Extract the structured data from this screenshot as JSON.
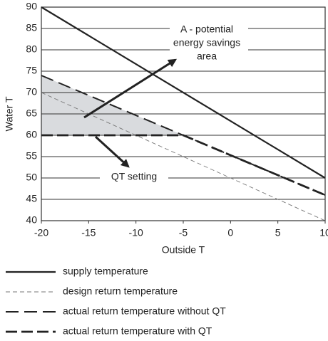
{
  "chart_data": {
    "type": "line",
    "xlabel": "Outside T",
    "ylabel": "Water T",
    "xlim": [
      -20,
      10
    ],
    "ylim": [
      40,
      90
    ],
    "xticks": [
      -20,
      -15,
      -10,
      -5,
      0,
      5,
      10
    ],
    "yticks": [
      40,
      45,
      50,
      55,
      60,
      65,
      70,
      75,
      80,
      85,
      90
    ],
    "grid": true,
    "series": [
      {
        "name": "supply temperature",
        "color": "#222222",
        "line_style": "solid",
        "x": [
          -20,
          10
        ],
        "values": [
          90,
          50
        ]
      },
      {
        "name": "design return temperature",
        "color": "#777777",
        "line_style": "thin-dash",
        "x": [
          -20,
          10
        ],
        "values": [
          70,
          40
        ]
      },
      {
        "name": "actual return temperature without QT",
        "color": "#222222",
        "line_style": "long-dash",
        "x": [
          -20,
          10
        ],
        "values": [
          74,
          46
        ]
      },
      {
        "name": "actual return temperature with QT",
        "color": "#222222",
        "line_style": "heavy-dash",
        "x": [
          -20,
          -5,
          10
        ],
        "values": [
          60,
          60,
          46
        ]
      }
    ],
    "annotations": [
      {
        "lines": [
          "A - potential",
          "energy savings",
          "area"
        ]
      },
      {
        "lines": [
          "QT setting"
        ]
      }
    ]
  }
}
